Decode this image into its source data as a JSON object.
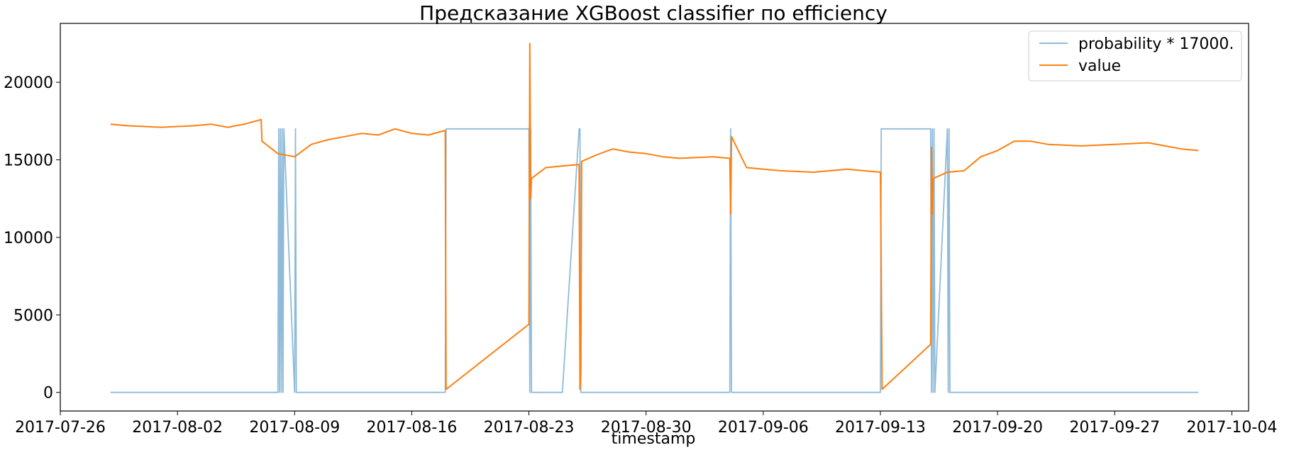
{
  "chart_data": {
    "type": "line",
    "title": "Предсказание XGBoost classifier по efficiency",
    "xlabel": "timestamp",
    "ylabel": "",
    "x_type": "date",
    "xlim": [
      "2017-07-26",
      "2017-10-05"
    ],
    "ylim": [
      -1200,
      23800
    ],
    "x_ticks": [
      "2017-07-26",
      "2017-08-02",
      "2017-08-09",
      "2017-08-16",
      "2017-08-23",
      "2017-08-30",
      "2017-09-06",
      "2017-09-13",
      "2017-09-20",
      "2017-09-27",
      "2017-10-04"
    ],
    "y_ticks": [
      0,
      5000,
      10000,
      15000,
      20000
    ],
    "grid": false,
    "legend_position": "top-right",
    "series": [
      {
        "name": "probability * 17000.",
        "color": "#8fbbd9",
        "points": [
          [
            "2017-07-29",
            0
          ],
          [
            "2017-08-08",
            0
          ],
          [
            "2017-08-08",
            17000
          ],
          [
            "2017-08-08",
            0
          ],
          [
            "2017-08-08",
            17000
          ],
          [
            "2017-08-08",
            0
          ],
          [
            "2017-08-08",
            17000
          ],
          [
            "2017-08-08",
            0
          ],
          [
            "2017-08-08",
            17000
          ],
          [
            "2017-08-09",
            0
          ],
          [
            "2017-08-09",
            17000
          ],
          [
            "2017-08-09",
            0
          ],
          [
            "2017-08-18",
            0
          ],
          [
            "2017-08-18",
            17000
          ],
          [
            "2017-08-23",
            17000
          ],
          [
            "2017-08-23",
            0
          ],
          [
            "2017-08-23",
            17000
          ],
          [
            "2017-08-23",
            0
          ],
          [
            "2017-08-25",
            0
          ],
          [
            "2017-08-26",
            17000
          ],
          [
            "2017-08-26",
            17000
          ],
          [
            "2017-08-26",
            0
          ],
          [
            "2017-09-04",
            0
          ],
          [
            "2017-09-04",
            17000
          ],
          [
            "2017-09-04",
            0
          ],
          [
            "2017-09-13",
            0
          ],
          [
            "2017-09-13",
            17000
          ],
          [
            "2017-09-16",
            17000
          ],
          [
            "2017-09-16",
            0
          ],
          [
            "2017-09-16",
            17000
          ],
          [
            "2017-09-16",
            0
          ],
          [
            "2017-09-16",
            17000
          ],
          [
            "2017-09-16",
            0
          ],
          [
            "2017-09-17",
            17000
          ],
          [
            "2017-09-17",
            0
          ],
          [
            "2017-09-17",
            17000
          ],
          [
            "2017-09-17",
            0
          ],
          [
            "2017-10-02",
            0
          ]
        ]
      },
      {
        "name": "value",
        "color": "#ff7f0e",
        "points": [
          [
            "2017-07-29",
            17300
          ],
          [
            "2017-07-30",
            17200
          ],
          [
            "2017-08-01",
            17100
          ],
          [
            "2017-08-03",
            17200
          ],
          [
            "2017-08-04",
            17300
          ],
          [
            "2017-08-05",
            17100
          ],
          [
            "2017-08-06",
            17300
          ],
          [
            "2017-08-07",
            17600
          ],
          [
            "2017-08-07",
            16200
          ],
          [
            "2017-08-08",
            15400
          ],
          [
            "2017-08-09",
            15200
          ],
          [
            "2017-08-10",
            16000
          ],
          [
            "2017-08-11",
            16300
          ],
          [
            "2017-08-12",
            16500
          ],
          [
            "2017-08-13",
            16700
          ],
          [
            "2017-08-14",
            16600
          ],
          [
            "2017-08-15",
            17000
          ],
          [
            "2017-08-16",
            16700
          ],
          [
            "2017-08-17",
            16600
          ],
          [
            "2017-08-18",
            16900
          ],
          [
            "2017-08-18",
            200
          ],
          [
            "2017-08-23",
            4400
          ],
          [
            "2017-08-23",
            22500
          ],
          [
            "2017-08-23",
            12500
          ],
          [
            "2017-08-23",
            13800
          ],
          [
            "2017-08-24",
            14500
          ],
          [
            "2017-08-25",
            14600
          ],
          [
            "2017-08-26",
            14700
          ],
          [
            "2017-08-26",
            200
          ],
          [
            "2017-08-26",
            1200
          ],
          [
            "2017-08-26",
            14900
          ],
          [
            "2017-08-27",
            15300
          ],
          [
            "2017-08-28",
            15700
          ],
          [
            "2017-08-29",
            15500
          ],
          [
            "2017-08-30",
            15400
          ],
          [
            "2017-08-31",
            15200
          ],
          [
            "2017-09-01",
            15100
          ],
          [
            "2017-09-03",
            15200
          ],
          [
            "2017-09-04",
            15100
          ],
          [
            "2017-09-04",
            11500
          ],
          [
            "2017-09-04",
            16500
          ],
          [
            "2017-09-05",
            14500
          ],
          [
            "2017-09-07",
            14300
          ],
          [
            "2017-09-09",
            14200
          ],
          [
            "2017-09-11",
            14400
          ],
          [
            "2017-09-12",
            14300
          ],
          [
            "2017-09-13",
            14200
          ],
          [
            "2017-09-13",
            7600
          ],
          [
            "2017-09-13",
            200
          ],
          [
            "2017-09-16",
            3100
          ],
          [
            "2017-09-16",
            15800
          ],
          [
            "2017-09-16",
            11500
          ],
          [
            "2017-09-16",
            13800
          ],
          [
            "2017-09-17",
            14200
          ],
          [
            "2017-09-18",
            14300
          ],
          [
            "2017-09-19",
            15200
          ],
          [
            "2017-09-20",
            15600
          ],
          [
            "2017-09-21",
            16200
          ],
          [
            "2017-09-22",
            16200
          ],
          [
            "2017-09-23",
            16000
          ],
          [
            "2017-09-25",
            15900
          ],
          [
            "2017-09-27",
            16000
          ],
          [
            "2017-09-29",
            16100
          ],
          [
            "2017-09-30",
            15900
          ],
          [
            "2017-10-01",
            15700
          ],
          [
            "2017-10-02",
            15600
          ]
        ]
      }
    ]
  }
}
